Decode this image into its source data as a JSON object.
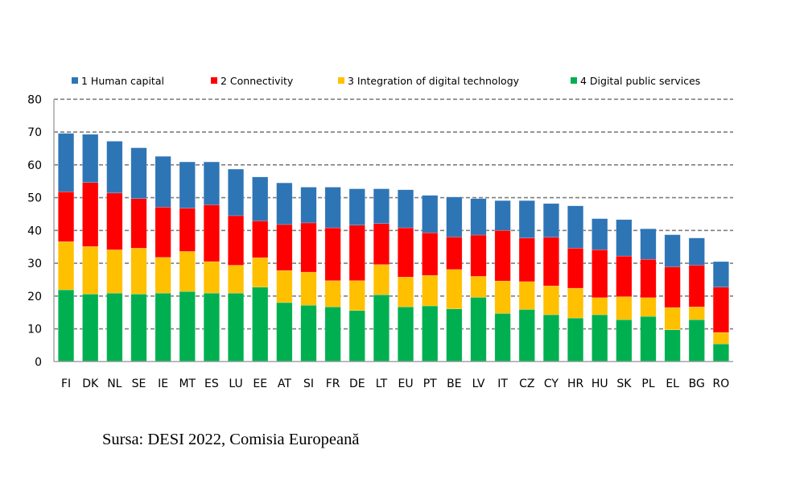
{
  "source_note": "Sursa: DESI 2022, Comisia Europeană",
  "chart_data": {
    "type": "bar",
    "stacked": true,
    "title": "",
    "xlabel": "",
    "ylabel": "",
    "ylim": [
      0,
      80
    ],
    "yticks": [
      0,
      10,
      20,
      30,
      40,
      50,
      60,
      70,
      80
    ],
    "grid": true,
    "legend_position": "top",
    "categories": [
      "FI",
      "DK",
      "NL",
      "SE",
      "IE",
      "MT",
      "ES",
      "LU",
      "EE",
      "AT",
      "SI",
      "FR",
      "DE",
      "LT",
      "EU",
      "PT",
      "BE",
      "LV",
      "IT",
      "CZ",
      "CY",
      "HR",
      "HU",
      "SK",
      "PL",
      "EL",
      "BG",
      "RO"
    ],
    "series": [
      {
        "name": "4 Digital public services",
        "color": "#00B050",
        "values": [
          21.9,
          20.6,
          20.9,
          20.6,
          20.9,
          21.4,
          20.9,
          20.9,
          22.7,
          18.0,
          17.2,
          16.7,
          15.6,
          20.4,
          16.7,
          17.0,
          16.1,
          19.6,
          14.7,
          15.9,
          14.3,
          13.3,
          14.3,
          12.8,
          13.8,
          9.7,
          12.8,
          5.4
        ]
      },
      {
        "name": "3 Integration of digital technology",
        "color": "#FFC000",
        "values": [
          14.7,
          14.5,
          13.2,
          14.0,
          10.9,
          12.2,
          9.6,
          8.5,
          9.0,
          9.8,
          10.1,
          8.0,
          9.1,
          9.2,
          9.1,
          9.3,
          12.0,
          6.4,
          9.9,
          8.5,
          8.8,
          9.1,
          5.2,
          7.0,
          5.7,
          6.8,
          3.9,
          3.5
        ]
      },
      {
        "name": "2 Connectivity",
        "color": "#FF0000",
        "values": [
          15.2,
          19.5,
          17.3,
          15.1,
          15.3,
          13.2,
          17.3,
          15.1,
          11.2,
          14.0,
          15.0,
          16.1,
          16.9,
          12.5,
          15.0,
          13.0,
          9.9,
          12.6,
          15.4,
          13.3,
          14.8,
          12.2,
          14.6,
          12.4,
          11.7,
          12.4,
          12.7,
          13.8
        ]
      },
      {
        "name": "1 Human capital",
        "color": "#2E75B6",
        "values": [
          17.8,
          14.7,
          15.8,
          15.5,
          15.5,
          14.1,
          13.1,
          14.2,
          13.4,
          12.7,
          10.9,
          12.4,
          11.1,
          10.6,
          11.6,
          11.4,
          12.2,
          11.1,
          9.1,
          11.4,
          10.3,
          12.9,
          9.5,
          11.1,
          9.3,
          9.8,
          8.3,
          7.8
        ]
      }
    ],
    "legend": [
      {
        "label": "1 Human capital",
        "color": "#2E75B6"
      },
      {
        "label": "2 Connectivity",
        "color": "#FF0000"
      },
      {
        "label": "3 Integration of digital technology",
        "color": "#FFC000"
      },
      {
        "label": "4 Digital public services",
        "color": "#00B050"
      }
    ]
  }
}
